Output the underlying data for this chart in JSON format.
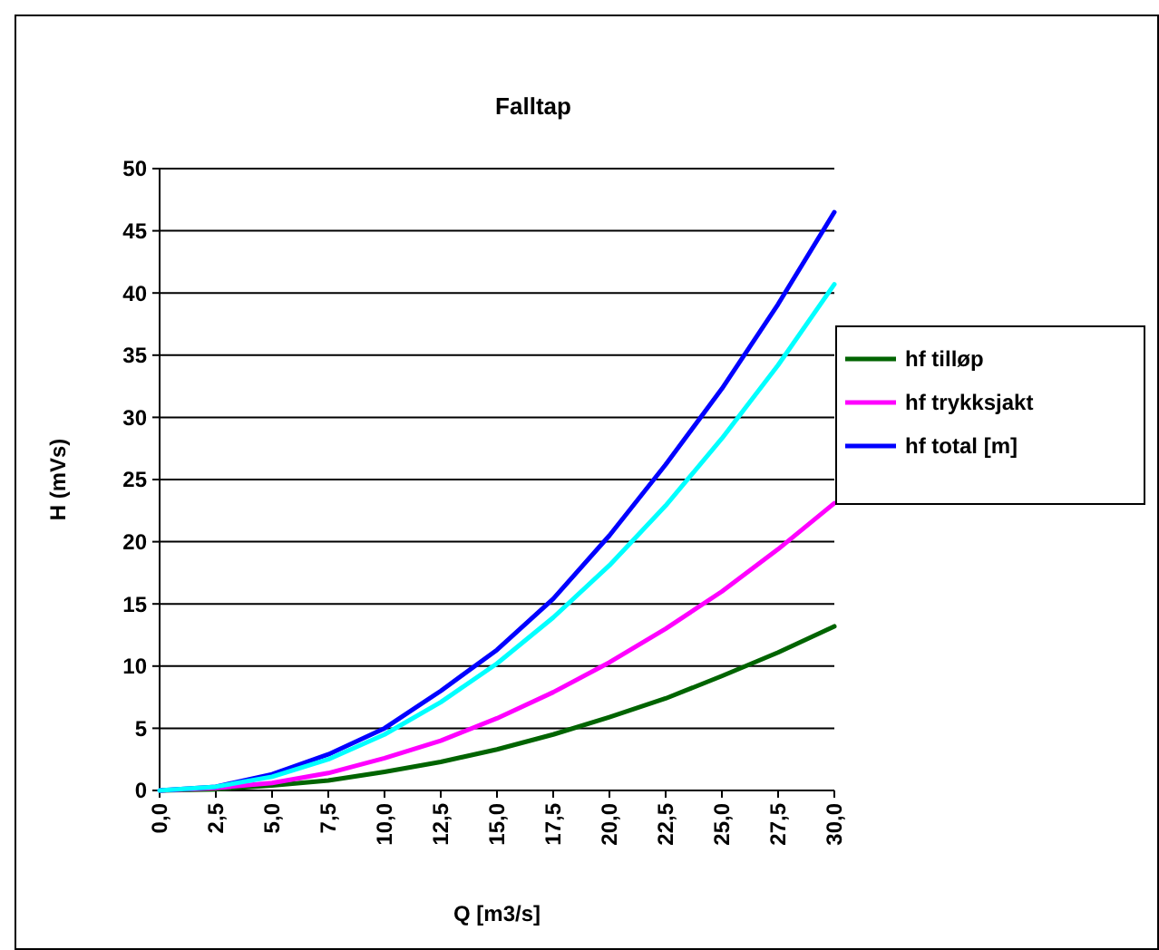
{
  "chart_data": {
    "type": "line",
    "title": "Falltap",
    "xlabel": "Q  [m3/s]",
    "ylabel": "H (mVs)",
    "categories": [
      "0,0",
      "2,5",
      "5,0",
      "7,5",
      "10,0",
      "12,5",
      "15,0",
      "17,5",
      "20,0",
      "22,5",
      "25,0",
      "27,5",
      "30,0"
    ],
    "series": [
      {
        "name": "hf tilløp",
        "color": "#006400",
        "values": [
          0,
          0.1,
          0.4,
          0.8,
          1.5,
          2.3,
          3.3,
          4.5,
          5.9,
          7.4,
          9.2,
          11.1,
          13.2
        ]
      },
      {
        "name": "hf trykksjakt",
        "color": "#ff00ff",
        "values": [
          0,
          0.2,
          0.6,
          1.4,
          2.6,
          4.0,
          5.8,
          7.9,
          10.3,
          13.0,
          16.0,
          19.4,
          23.1
        ]
      },
      {
        "name": "hf total [m]",
        "color": "#0000ff",
        "values": [
          0,
          0.3,
          1.3,
          2.9,
          5.0,
          8.0,
          11.3,
          15.4,
          20.5,
          26.2,
          32.3,
          39.1,
          46.5
        ]
      },
      {
        "color": "#00ffff",
        "values": [
          0,
          0.3,
          1.1,
          2.5,
          4.5,
          7.1,
          10.2,
          13.9,
          18.1,
          22.9,
          28.3,
          34.2,
          40.7
        ]
      }
    ],
    "ylim": [
      0,
      50
    ],
    "yticks": [
      0,
      5,
      10,
      15,
      20,
      25,
      30,
      35,
      40,
      45,
      50
    ],
    "grid": "y",
    "legend": "right",
    "marker": "none",
    "line_style": "solid"
  }
}
